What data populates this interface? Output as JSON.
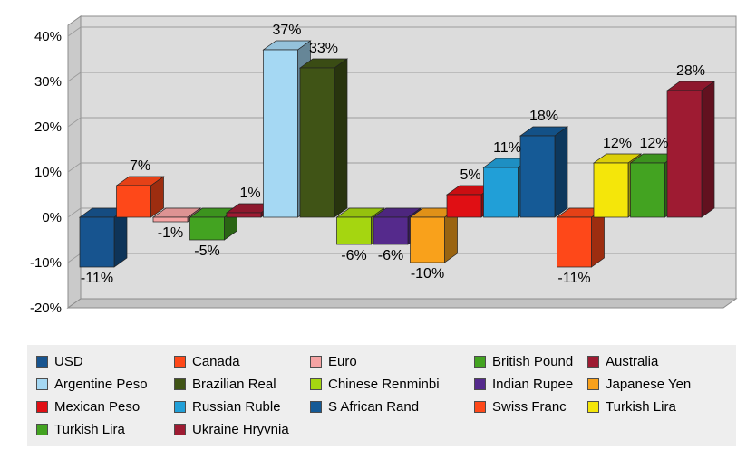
{
  "chart_data": {
    "type": "bar",
    "style": "3d-column",
    "title": "",
    "xlabel": "",
    "ylabel": "",
    "categories": [
      "USD",
      "Canada",
      "Euro",
      "British Pound",
      "Australia",
      "Argentine Peso",
      "Brazilian Real",
      "Chinese Renminbi",
      "Indian Rupee",
      "Japanese Yen",
      "Mexican Peso",
      "Russian Ruble",
      "S African Rand",
      "Swiss Franc",
      "Turkish Lira",
      "Turkish Lira",
      "Ukraine Hryvnia"
    ],
    "values": [
      -11,
      7,
      -1,
      -5,
      1,
      37,
      33,
      -6,
      -6,
      -10,
      5,
      11,
      18,
      -11,
      12,
      12,
      28
    ],
    "labels": [
      "-11%",
      "7%",
      "-1%",
      "-5%",
      "1%",
      "37%",
      "33%",
      "-6%",
      "-6%",
      "-10%",
      "5%",
      "11%",
      "18%",
      "-11%",
      "12%",
      "12%",
      "28%"
    ],
    "colors": [
      "#17548F",
      "#FE4819",
      "#F5A3A3",
      "#43A321",
      "#9E1B32",
      "#A5D8F3",
      "#405416",
      "#A5D610",
      "#552A8C",
      "#F9A11B",
      "#E00F14",
      "#219FD7",
      "#155A96",
      "#FE4819",
      "#F4E60A",
      "#43A321",
      "#9E1B32"
    ],
    "ylim": [
      -20,
      40
    ],
    "ytick_step": 10,
    "ytick_labels": [
      "40%",
      "30%",
      "20%",
      "10%",
      "0%",
      "-10%",
      "-20%"
    ],
    "grid": true,
    "legend_position": "bottom",
    "wall_color": "#dcdcdc",
    "floor_color": "#c2c2c2",
    "sidewall_color": "#cacaca",
    "gridline_color": "#9b9b9b"
  }
}
